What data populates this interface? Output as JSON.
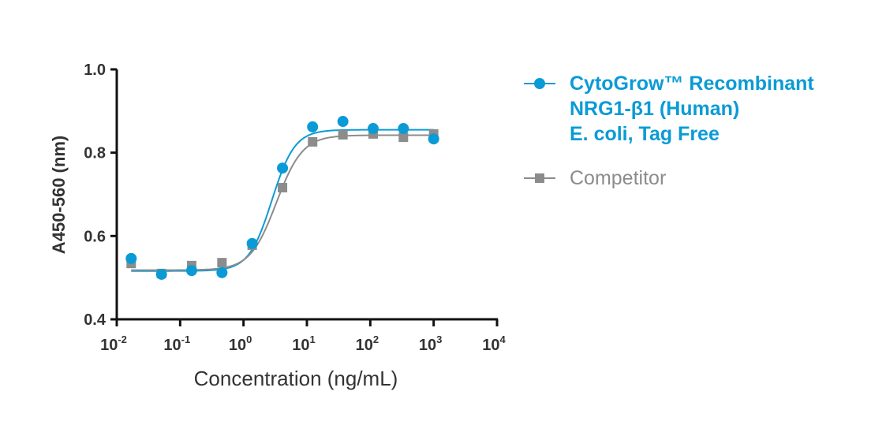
{
  "chart_data": {
    "type": "scatter",
    "title": "",
    "xlabel": "Concentration (ng/mL)",
    "ylabel": "A450-560 (nm)",
    "xscale": "log",
    "xlim": [
      0.01,
      10000
    ],
    "ylim": [
      0.4,
      1.0
    ],
    "x_ticks": [
      {
        "base": "10",
        "exp": "-2",
        "value": 0.01
      },
      {
        "base": "10",
        "exp": "-1",
        "value": 0.1
      },
      {
        "base": "10",
        "exp": "0",
        "value": 1
      },
      {
        "base": "10",
        "exp": "1",
        "value": 10
      },
      {
        "base": "10",
        "exp": "2",
        "value": 100
      },
      {
        "base": "10",
        "exp": "3",
        "value": 1000
      },
      {
        "base": "10",
        "exp": "4",
        "value": 10000
      }
    ],
    "y_ticks": [
      {
        "label": "1.0",
        "value": 1.0
      },
      {
        "label": "0.8",
        "value": 0.8
      },
      {
        "label": "0.6",
        "value": 0.6
      },
      {
        "label": "0.4",
        "value": 0.4
      }
    ],
    "grid": false,
    "legend_position": "right",
    "x": [
      0.0169,
      0.0508,
      0.152,
      0.457,
      1.37,
      4.12,
      12.3,
      37,
      111,
      333,
      1000
    ],
    "series": [
      {
        "name": "CytoGrow™ Recombinant\nNRG1-β1 (Human)\nE. coli, Tag Free",
        "color": "#0a9bd6",
        "marker": "circle",
        "values": [
          0.546,
          0.508,
          0.517,
          0.512,
          0.582,
          0.763,
          0.862,
          0.875,
          0.858,
          0.858,
          0.833
        ],
        "fit": {
          "model": "4PL",
          "bottom": 0.516,
          "top": 0.855,
          "ec50": 2.8,
          "hill": 2.4
        }
      },
      {
        "name": "Competitor",
        "color": "#8c8c8c",
        "marker": "square",
        "values": [
          0.534,
          0.51,
          0.529,
          0.536,
          0.578,
          0.716,
          0.826,
          0.843,
          0.845,
          0.837,
          0.845
        ],
        "fit": {
          "model": "4PL",
          "bottom": 0.518,
          "top": 0.842,
          "ec50": 3.3,
          "hill": 2.1
        }
      }
    ]
  }
}
